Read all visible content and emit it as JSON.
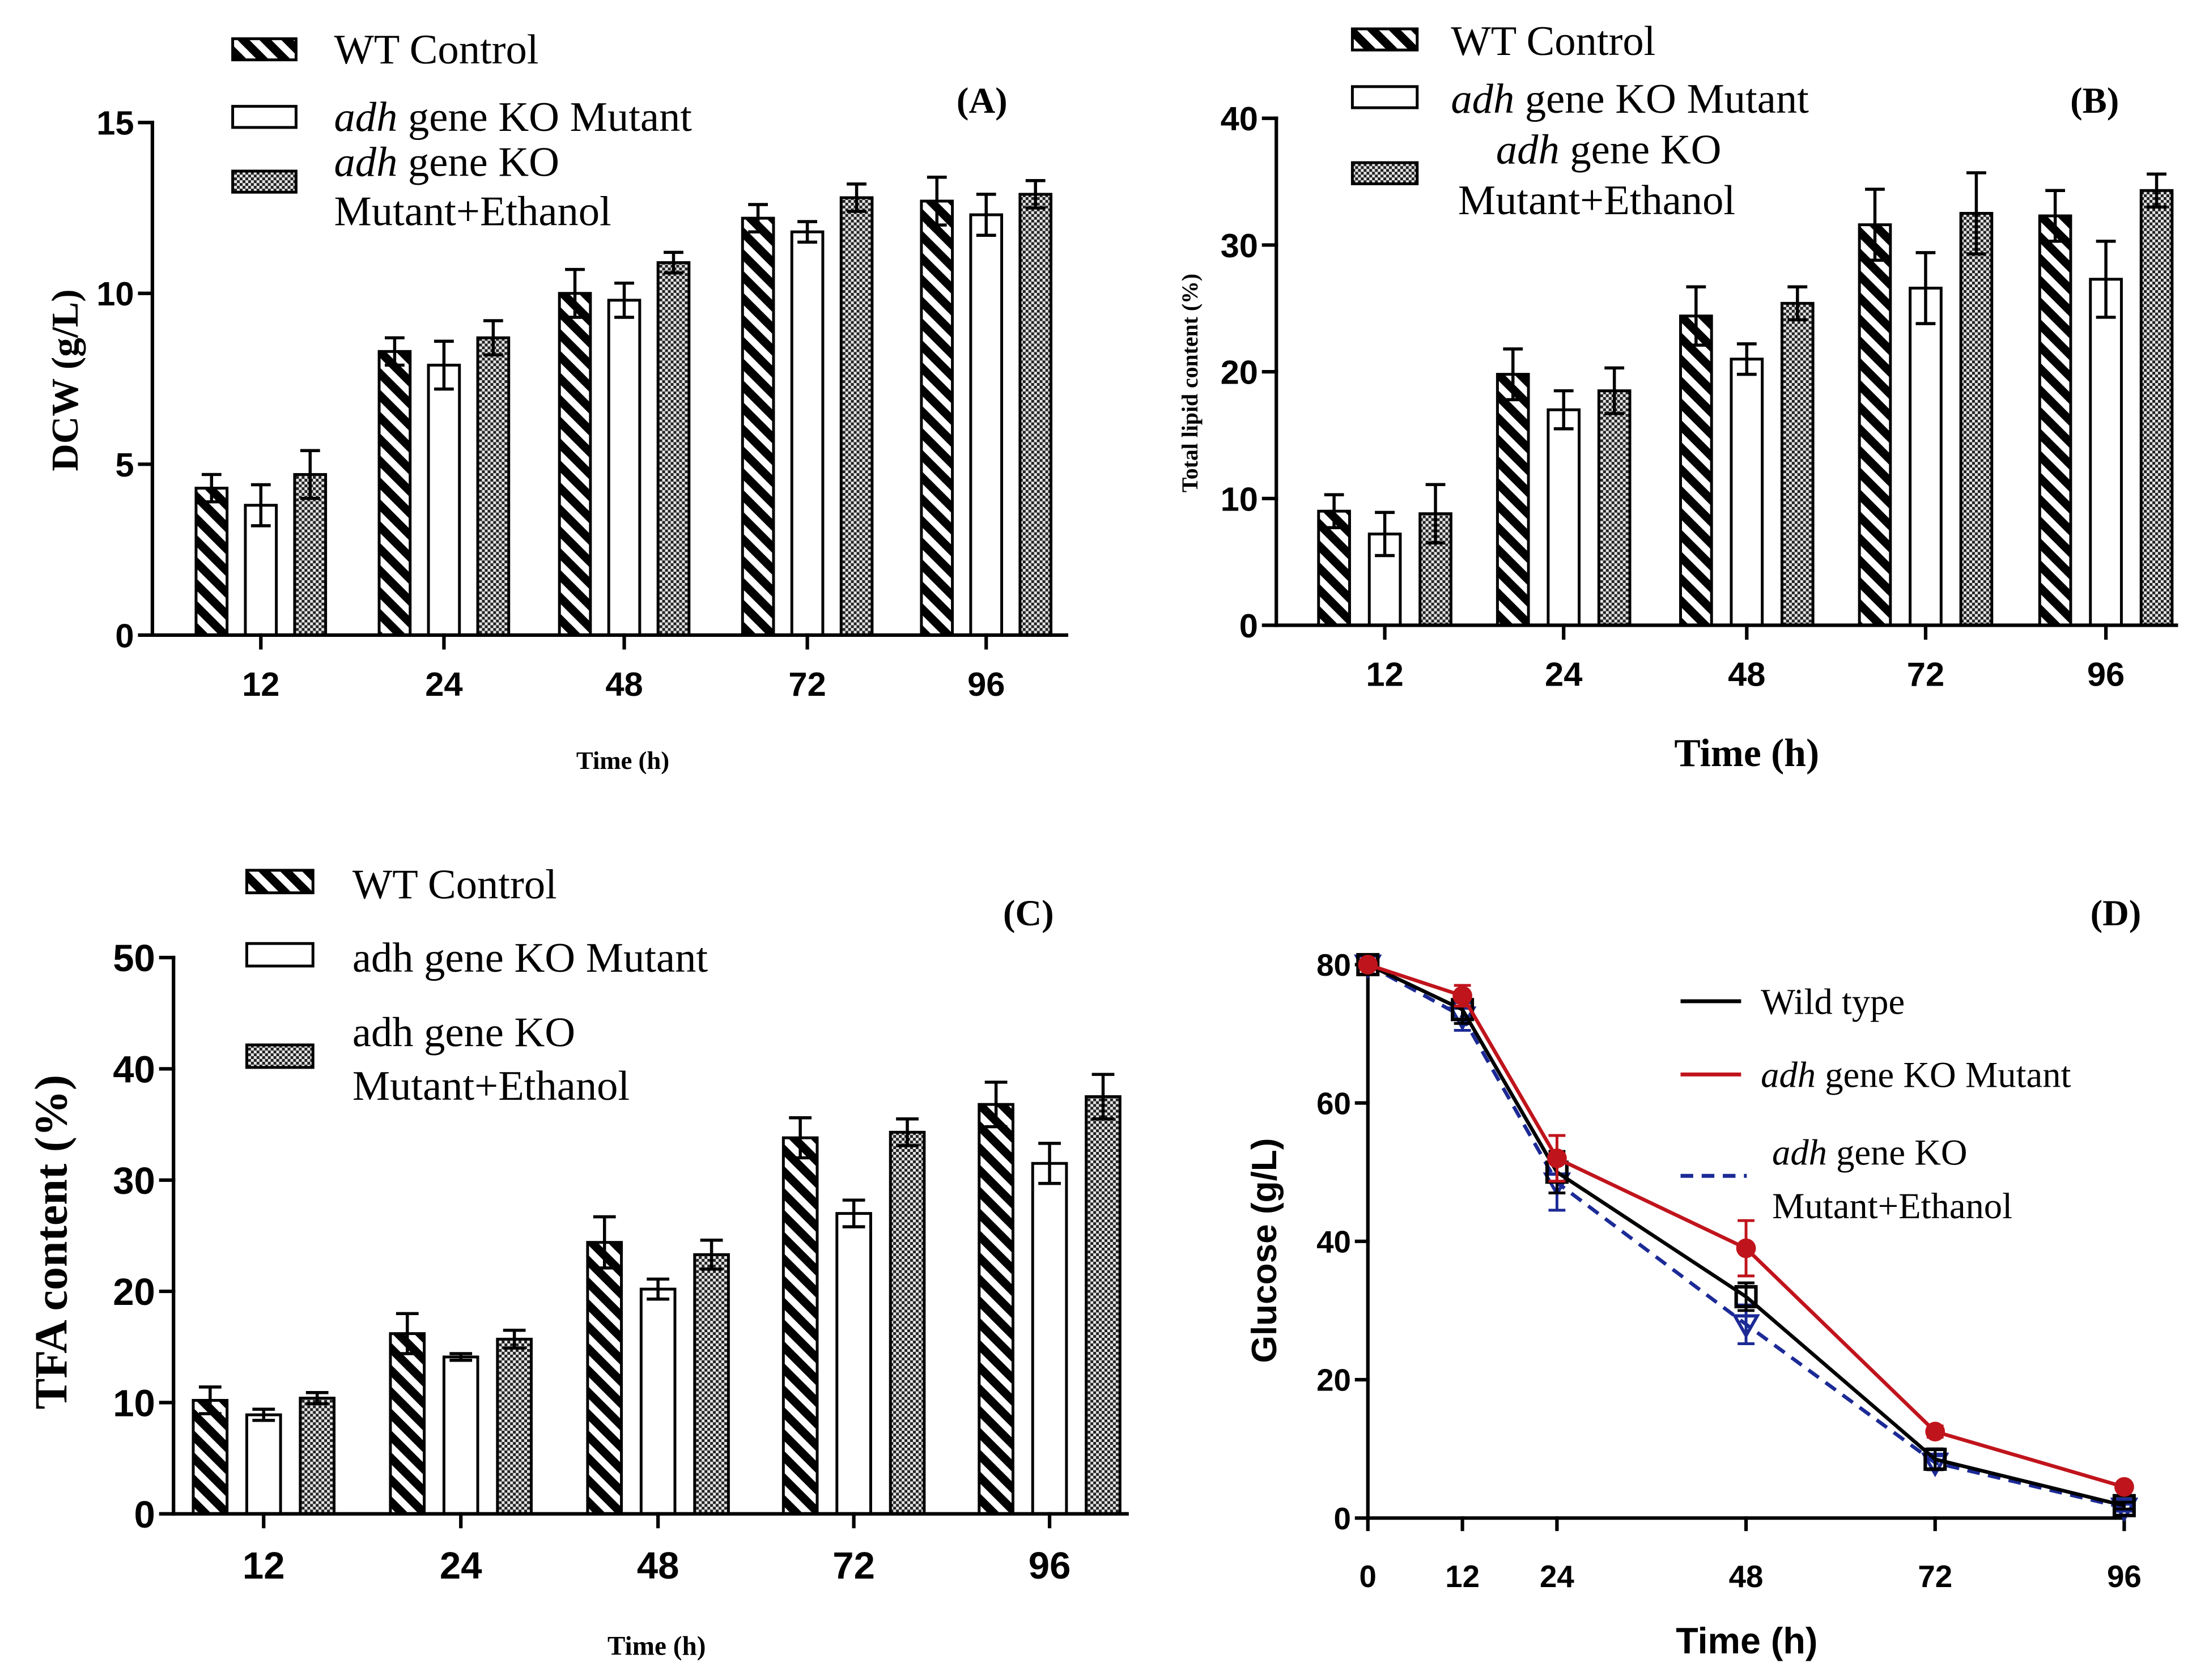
{
  "chart_data": [
    {
      "panel": "(A)",
      "type": "bar",
      "title": "",
      "xlabel": "Time (h)",
      "ylabel": "DCW (g/L)",
      "ylim": [
        0,
        15
      ],
      "yticks": [
        0,
        5,
        10,
        15
      ],
      "categories": [
        "12",
        "24",
        "48",
        "72",
        "96"
      ],
      "series": [
        {
          "name_lines": [
            "WT Control"
          ],
          "values": [
            4.3,
            8.3,
            10.0,
            12.2,
            12.7
          ],
          "errors": [
            0.4,
            0.4,
            0.7,
            0.4,
            0.7
          ]
        },
        {
          "name_lines": [
            "adh gene KO Mutant"
          ],
          "values": [
            3.8,
            7.9,
            9.8,
            11.8,
            12.3
          ],
          "errors": [
            0.6,
            0.7,
            0.5,
            0.3,
            0.6
          ]
        },
        {
          "name_lines": [
            "adh gene KO",
            "Mutant+Ethanol"
          ],
          "values": [
            4.7,
            8.7,
            10.9,
            12.8,
            12.9
          ],
          "errors": [
            0.7,
            0.5,
            0.3,
            0.4,
            0.4
          ]
        }
      ]
    },
    {
      "panel": "(B)",
      "type": "bar",
      "title": "",
      "xlabel": "Time (h)",
      "ylabel": "Total lipid content (%)",
      "ylim": [
        0,
        40
      ],
      "yticks": [
        0,
        10,
        20,
        30,
        40
      ],
      "categories": [
        "12",
        "24",
        "48",
        "72",
        "96"
      ],
      "series": [
        {
          "name_lines": [
            "WT Control"
          ],
          "values": [
            9.0,
            19.8,
            24.4,
            31.6,
            32.3
          ],
          "errors": [
            1.3,
            2.0,
            2.3,
            2.8,
            2.0
          ]
        },
        {
          "name_lines": [
            "adh gene KO Mutant"
          ],
          "values": [
            7.2,
            17.0,
            21.0,
            26.6,
            27.3
          ],
          "errors": [
            1.7,
            1.5,
            1.2,
            2.8,
            3.0
          ]
        },
        {
          "name_lines": [
            "adh gene KO",
            "Mutant+Ethanol"
          ],
          "values": [
            8.8,
            18.5,
            25.4,
            32.5,
            34.3
          ],
          "errors": [
            2.3,
            1.8,
            1.3,
            3.2,
            1.3
          ]
        }
      ]
    },
    {
      "panel": "(C)",
      "type": "bar",
      "title": "",
      "xlabel": "Time (h)",
      "ylabel": "TFA content (%)",
      "ylim": [
        0,
        50
      ],
      "yticks": [
        0,
        10,
        20,
        30,
        40,
        50
      ],
      "categories": [
        "12",
        "24",
        "48",
        "72",
        "96"
      ],
      "series": [
        {
          "name_lines": [
            "WT Control"
          ],
          "values": [
            10.2,
            16.2,
            24.4,
            33.8,
            36.8
          ],
          "errors": [
            1.2,
            1.8,
            2.3,
            1.8,
            2.0
          ]
        },
        {
          "name_lines": [
            "adh gene KO Mutant"
          ],
          "values": [
            8.9,
            14.1,
            20.2,
            27.0,
            31.5
          ],
          "errors": [
            0.5,
            0.3,
            0.9,
            1.2,
            1.8
          ]
        },
        {
          "name_lines": [
            "adh gene KO",
            "Mutant+Ethanol"
          ],
          "values": [
            10.4,
            15.7,
            23.3,
            34.3,
            37.5
          ],
          "errors": [
            0.5,
            0.8,
            1.3,
            1.2,
            2.0
          ]
        }
      ]
    },
    {
      "panel": "(D)",
      "type": "line",
      "title": "",
      "xlabel": "Time (h)",
      "ylabel": "Glucose (g/L)",
      "x": [
        0,
        12,
        24,
        48,
        72,
        96
      ],
      "xlim": [
        0,
        96
      ],
      "xticks": [
        0,
        12,
        24,
        48,
        72,
        96
      ],
      "ylim": [
        0,
        80
      ],
      "yticks": [
        0,
        20,
        40,
        60,
        80
      ],
      "series": [
        {
          "name_lines": [
            "Wild type"
          ],
          "color": "#000000",
          "values": [
            80,
            73.5,
            50.0,
            32.0,
            8.5,
            1.8
          ],
          "errors": [
            0,
            2.0,
            3.0,
            2.0,
            1.5,
            0.5
          ]
        },
        {
          "name_lines": [
            "adh gene KO Mutant"
          ],
          "color": "#c0141c",
          "values": [
            80,
            75.5,
            52.0,
            39.0,
            12.5,
            4.5
          ],
          "errors": [
            0,
            1.5,
            3.3,
            4.0,
            0.8,
            0.5
          ]
        },
        {
          "name_lines": [
            "adh gene KO",
            "Mutant+Ethanol"
          ],
          "color": "#1c2a96",
          "values": [
            80,
            72.5,
            48.5,
            28.0,
            8.0,
            1.5
          ],
          "errors": [
            0,
            2.0,
            4.0,
            2.8,
            1.0,
            0.5
          ]
        }
      ]
    }
  ]
}
